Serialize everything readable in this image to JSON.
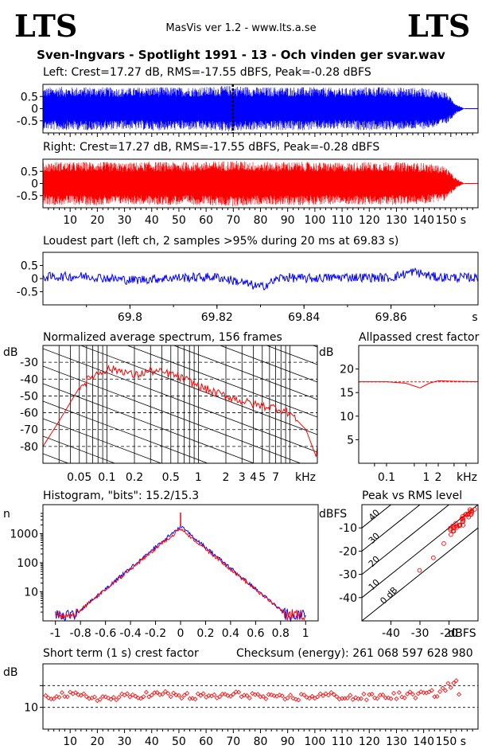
{
  "header": {
    "logo_left": "LTS",
    "logo_right": "LTS",
    "app_title": "MasVis ver 1.2 - www.lts.a.se",
    "file_title": "Sven-Ingvars - Spotlight 1991 - 13 - Och vinden ger svar.wav"
  },
  "colors": {
    "left": "#0000ff",
    "right": "#ff0000",
    "grid": "#000000"
  },
  "panels": {
    "left_waveform": {
      "title": "Left: Crest=17.27 dB, RMS=-17.55 dBFS, Peak=-0.28 dBFS",
      "yticks": [
        "0.5",
        "0",
        "-0.5"
      ],
      "marker_time_s": 69.83
    },
    "right_waveform": {
      "title": "Right: Crest=17.27 dB, RMS=-17.55 dBFS, Peak=-0.28 dBFS",
      "yticks": [
        "0.5",
        "0",
        "-0.5"
      ],
      "xticks": [
        "10",
        "20",
        "30",
        "40",
        "50",
        "60",
        "70",
        "80",
        "90",
        "100",
        "110",
        "120",
        "130",
        "140",
        "150 s"
      ]
    },
    "loudest": {
      "title": "Loudest part (left  ch, 2 samples >95% during 20 ms at 69.83 s)",
      "yticks": [
        "0.5",
        "0",
        "-0.5"
      ],
      "xticks": [
        "69.8",
        "69.82",
        "69.84",
        "69.86",
        "s"
      ]
    },
    "spectrum": {
      "title": "Normalized average spectrum, 156 frames",
      "ylabel": "dB",
      "yticks": [
        "-30",
        "-40",
        "-50",
        "-60",
        "-70",
        "-80"
      ],
      "xticks": [
        "0.05",
        "0.1",
        "0.2",
        "0.5",
        "1",
        "2",
        "3",
        "4",
        "5",
        "7",
        "kHz"
      ]
    },
    "allpass": {
      "title": "Allpassed crest factor",
      "ylabel": "dB",
      "yticks": [
        "20",
        "15",
        "10",
        "5"
      ],
      "xticks": [
        "0.1",
        "1",
        "2",
        "kHz"
      ]
    },
    "histogram": {
      "title": "Histogram, \"bits\": 15.2/15.3",
      "ylabel": "n",
      "yticks": [
        "1000",
        "100",
        "10"
      ],
      "xticks": [
        "-1",
        "-0.8",
        "-0.6",
        "-0.4",
        "-0.2",
        "0",
        "0.2",
        "0.4",
        "0.6",
        "0.8",
        "1"
      ]
    },
    "peak_rms": {
      "title": "Peak vs RMS level",
      "ylabel": "dBFS",
      "yticks": [
        "-10",
        "-20",
        "-30",
        "-40"
      ],
      "xticks": [
        "-40",
        "-30",
        "-20",
        "dBFS"
      ],
      "diag_labels": [
        "40",
        "30",
        "20",
        "10",
        "0 dB"
      ]
    },
    "short_crest": {
      "title": "Short term (1 s) crest factor",
      "checksum": "Checksum (energy):   261 068 597 628 980",
      "ylabel": "dB",
      "yticks": [
        "10"
      ],
      "xticks": [
        "10",
        "20",
        "30",
        "40",
        "50",
        "60",
        "70",
        "80",
        "90",
        "100",
        "110",
        "120",
        "130",
        "140",
        "150 s"
      ]
    }
  },
  "chart_data": [
    {
      "type": "line",
      "title": "Left: Crest=17.27 dB, RMS=-17.55 dBFS, Peak=-0.28 dBFS",
      "xlim": [
        0,
        160
      ],
      "ylim": [
        -1,
        1
      ],
      "envelope_x": [
        0,
        5,
        10,
        20,
        30,
        40,
        50,
        60,
        70,
        80,
        90,
        100,
        110,
        120,
        130,
        140,
        148,
        152,
        155
      ],
      "envelope_y": [
        0.85,
        0.9,
        0.88,
        0.9,
        0.85,
        0.9,
        0.88,
        0.9,
        0.95,
        0.88,
        0.9,
        0.88,
        0.85,
        0.9,
        0.88,
        0.85,
        0.7,
        0.2,
        0
      ]
    },
    {
      "type": "line",
      "title": "Right: Crest=17.27 dB, RMS=-17.55 dBFS, Peak=-0.28 dBFS",
      "xlim": [
        0,
        160
      ],
      "ylim": [
        -1,
        1
      ],
      "envelope_x": [
        0,
        5,
        10,
        20,
        30,
        40,
        50,
        60,
        70,
        80,
        90,
        100,
        110,
        120,
        130,
        140,
        148,
        152,
        155
      ],
      "envelope_y": [
        0.85,
        0.9,
        0.88,
        0.9,
        0.85,
        0.9,
        0.88,
        0.9,
        0.95,
        0.88,
        0.9,
        0.88,
        0.85,
        0.9,
        0.88,
        0.85,
        0.7,
        0.2,
        0
      ]
    },
    {
      "type": "line",
      "title": "Loudest part (left  ch, 2 samples >95% during 20 ms at 69.83 s)",
      "xlim": [
        69.78,
        69.88
      ],
      "ylim": [
        -1,
        1
      ],
      "x": [
        69.78,
        69.79,
        69.8,
        69.81,
        69.82,
        69.825,
        69.83,
        69.835,
        69.84,
        69.85,
        69.86,
        69.865,
        69.87,
        69.88
      ],
      "y": [
        0.1,
        0.15,
        -0.1,
        0.05,
        0.1,
        -0.2,
        -0.55,
        0.1,
        0.0,
        0.1,
        0.05,
        0.45,
        0.1,
        0.05
      ]
    },
    {
      "type": "line",
      "title": "Normalized average spectrum, 156 frames",
      "xscale": "log",
      "xlim": [
        0.02,
        20
      ],
      "ylim": [
        -90,
        -20
      ],
      "x": [
        0.02,
        0.03,
        0.05,
        0.07,
        0.1,
        0.15,
        0.2,
        0.3,
        0.5,
        0.7,
        1,
        1.5,
        2,
        3,
        4,
        5,
        7,
        10,
        15,
        20
      ],
      "y": [
        -80,
        -65,
        -45,
        -38,
        -34,
        -35,
        -38,
        -35,
        -37,
        -40,
        -44,
        -48,
        -50,
        -53,
        -55,
        -56,
        -57,
        -60,
        -70,
        -88
      ]
    },
    {
      "type": "line",
      "title": "Allpassed crest factor",
      "xscale": "log",
      "xlim": [
        0.02,
        20
      ],
      "ylim": [
        0,
        25
      ],
      "x": [
        0.02,
        0.1,
        0.3,
        0.7,
        1.2,
        2,
        5,
        20
      ],
      "y": [
        17.3,
        17.3,
        17.0,
        16.0,
        17.0,
        17.5,
        17.4,
        17.3
      ],
      "reference_y": 17.27
    },
    {
      "type": "line",
      "title": "Histogram, \"bits\": 15.2/15.3",
      "yscale": "log",
      "xlim": [
        -1.1,
        1.1
      ],
      "ylim": [
        1,
        10000
      ],
      "x": [
        -1,
        -0.8,
        -0.6,
        -0.4,
        -0.2,
        0,
        0.2,
        0.4,
        0.6,
        0.8,
        1
      ],
      "series": [
        {
          "values": [
            1,
            2,
            10,
            40,
            200,
            1800,
            200,
            40,
            10,
            2,
            1
          ]
        },
        {
          "values": [
            1,
            2,
            8,
            30,
            150,
            1500,
            150,
            30,
            8,
            2,
            1
          ]
        }
      ]
    },
    {
      "type": "scatter",
      "title": "Peak vs RMS level",
      "xlim": [
        -50,
        -10
      ],
      "ylim": [
        -50,
        0
      ],
      "x": [
        -30,
        -26,
        -22,
        -20,
        -19,
        -18,
        -17,
        -16,
        -15,
        -14,
        -13,
        -12
      ],
      "y": [
        -28,
        -22,
        -16,
        -12,
        -11,
        -10,
        -9,
        -8,
        -6,
        -5,
        -4,
        -3
      ]
    },
    {
      "type": "scatter",
      "title": "Short term (1 s) crest factor",
      "xlim": [
        0,
        160
      ],
      "ylim": [
        5,
        20
      ],
      "x": [
        5,
        15,
        25,
        35,
        45,
        55,
        65,
        75,
        85,
        95,
        105,
        115,
        125,
        135,
        145,
        152
      ],
      "y": [
        13,
        12.5,
        12,
        12.8,
        13,
        12.4,
        12.6,
        13,
        12,
        12.4,
        12.8,
        12.2,
        12.5,
        12.8,
        13.2,
        16
      ],
      "reference_y": [
        10,
        15
      ]
    }
  ]
}
